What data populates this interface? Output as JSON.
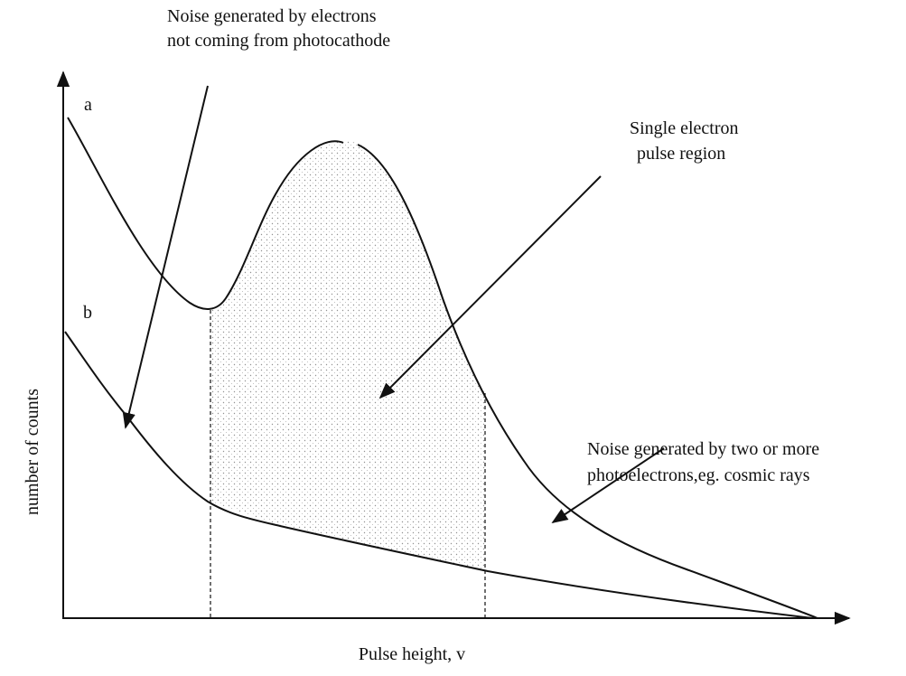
{
  "axes": {
    "x_label": "Pulse height, v",
    "y_label": "number of counts"
  },
  "curves": [
    {
      "label": "a"
    },
    {
      "label": "b"
    }
  ],
  "annotations": [
    {
      "lines": [
        "Noise generated by electrons",
        "not coming from photocathode"
      ]
    },
    {
      "lines": [
        "Single electron",
        "pulse region"
      ]
    },
    {
      "lines": [
        "Noise generated by two or more",
        "photoelectrons,eg. cosmic rays"
      ]
    }
  ]
}
